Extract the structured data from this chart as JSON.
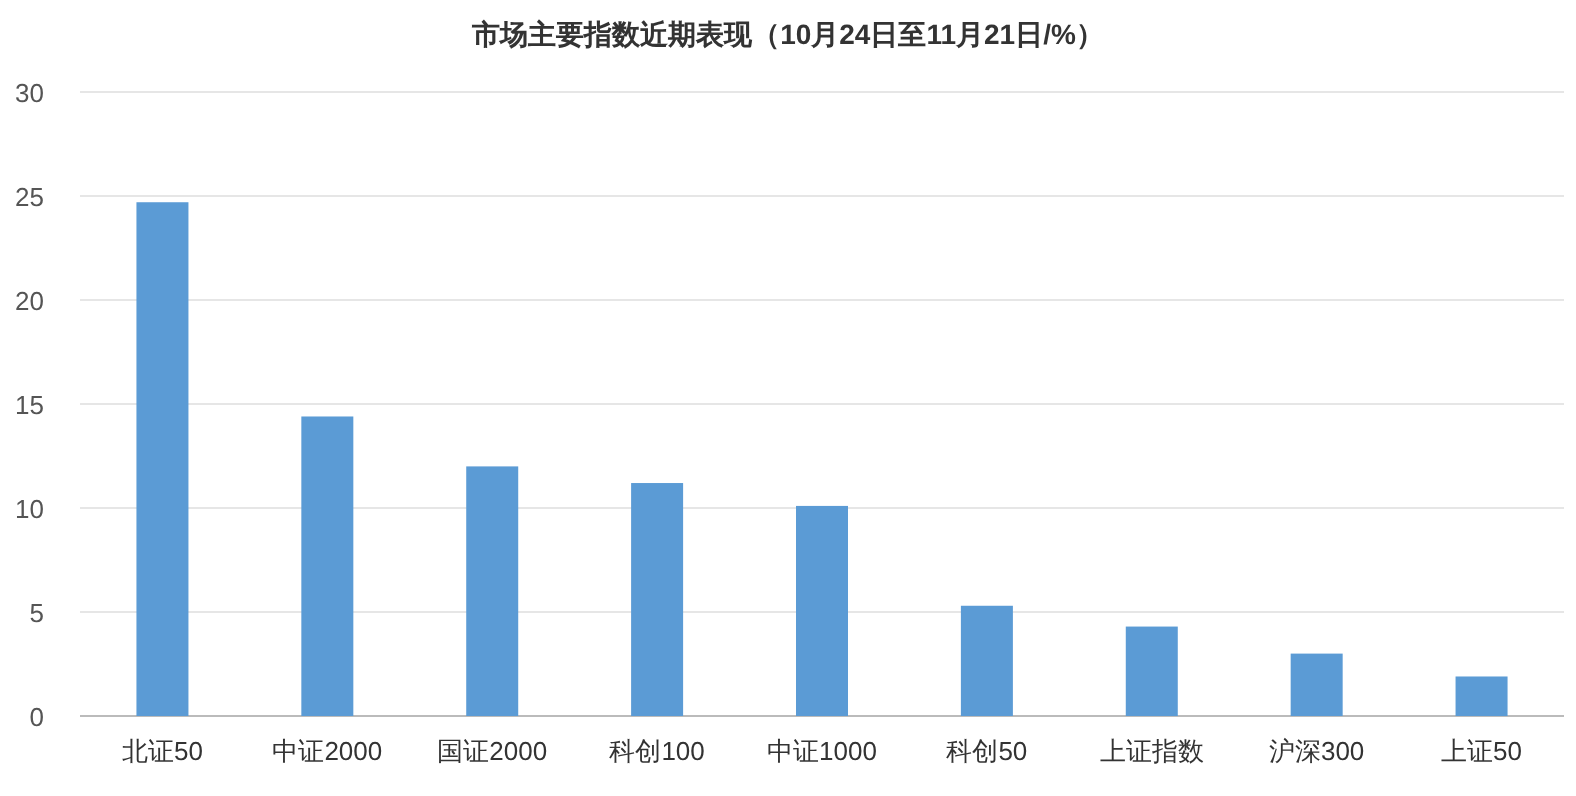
{
  "chart_data": {
    "type": "bar",
    "title": "市场主要指数近期表现（10月24日至11月21日/%）",
    "categories": [
      "北证50",
      "中证2000",
      "国证2000",
      "科创100",
      "中证1000",
      "科创50",
      "上证指数",
      "沪深300",
      "上证50"
    ],
    "values": [
      24.7,
      14.4,
      12.0,
      11.2,
      10.1,
      5.3,
      4.3,
      3.0,
      1.9
    ],
    "color": "#5b9bd5",
    "ylim": [
      0,
      30
    ],
    "yticks": [
      0,
      5,
      10,
      15,
      20,
      25,
      30
    ],
    "grid": "y"
  }
}
